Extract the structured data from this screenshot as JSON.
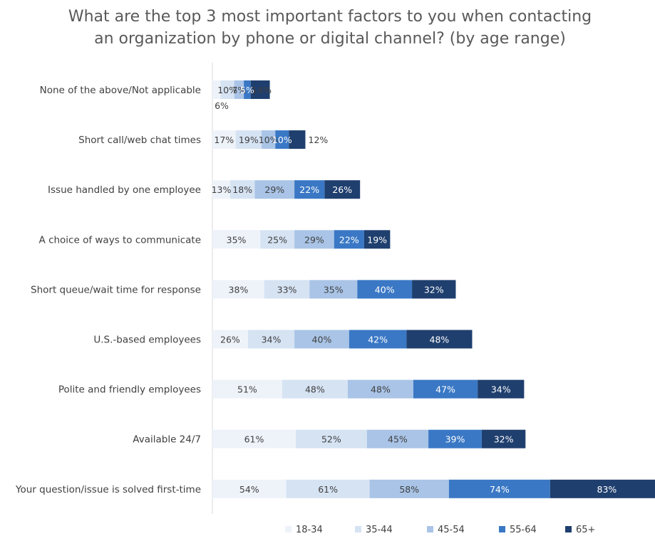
{
  "chart_data": {
    "type": "bar",
    "orientation": "horizontal",
    "stacked": true,
    "title": "What are the top 3 most important factors to you when contacting an organization by phone or digital channel? (by age range)",
    "title_lines": [
      "What are the top 3 most important factors to you when contacting",
      "an organization by phone or digital channel? (by age range)"
    ],
    "categories": [
      "None of the above/Not applicable",
      "Short call/web chat times",
      "Issue handled by one employee",
      "A choice of ways to communicate",
      "Short queue/wait time for response",
      "U.S.-based employees",
      "Polite and friendly employees",
      "Available 24/7",
      "Your question/issue is solved first-time"
    ],
    "series": [
      {
        "name": "18-34",
        "color": "#eef3fa",
        "label_color": "#404040",
        "values": [
          6,
          17,
          13,
          35,
          38,
          26,
          51,
          61,
          54
        ]
      },
      {
        "name": "35-44",
        "color": "#d6e3f3",
        "label_color": "#404040",
        "values": [
          10,
          19,
          18,
          25,
          33,
          34,
          48,
          52,
          61
        ]
      },
      {
        "name": "45-54",
        "color": "#a9c4e6",
        "label_color": "#404040",
        "values": [
          7,
          10,
          29,
          29,
          35,
          40,
          48,
          45,
          58
        ]
      },
      {
        "name": "55-64",
        "color": "#3a78c5",
        "label_color": "#ffffff",
        "values": [
          5,
          10,
          22,
          22,
          40,
          42,
          47,
          39,
          74
        ]
      },
      {
        "name": "65+",
        "color": "#1f3f6e",
        "label_color": "#ffffff",
        "values": [
          14,
          12,
          26,
          19,
          32,
          48,
          34,
          32,
          83
        ]
      }
    ],
    "value_format": "percent",
    "legend_position": "bottom",
    "grid": false,
    "xlabel": "",
    "ylabel": ""
  }
}
